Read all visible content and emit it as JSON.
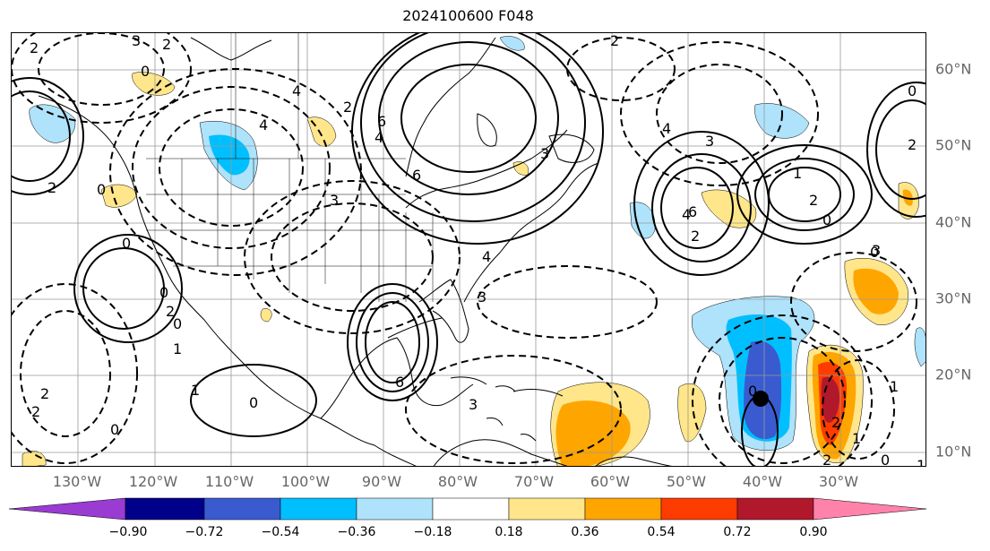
{
  "title": "2024100600 F048",
  "longitude_labels": [
    "130°W",
    "120°W",
    "110°W",
    "100°W",
    "90°W",
    "80°W",
    "70°W",
    "60°W",
    "50°W",
    "40°W",
    "30°W"
  ],
  "latitude_labels": [
    "60°N",
    "50°N",
    "40°N",
    "30°N",
    "20°N",
    "10°N"
  ],
  "colorbar": {
    "ticks": [
      "−0.90",
      "−0.72",
      "−0.54",
      "−0.36",
      "−0.18",
      "0.18",
      "0.36",
      "0.54",
      "0.72",
      "0.90"
    ],
    "colors": [
      "#9a3bd1",
      "#00008b",
      "#3a5bd0",
      "#00bfff",
      "#aee3fb",
      "#ffffff",
      "#ffe68a",
      "#ffa500",
      "#ff3c00",
      "#b2182b",
      "#ff82ab"
    ]
  },
  "contour_labels": [
    "3",
    "2",
    "2",
    "0",
    "4",
    "2",
    "0",
    "4",
    "6",
    "6",
    "4",
    "2",
    "3",
    "0",
    "0",
    "2",
    "0",
    "1",
    "2",
    "2",
    "1",
    "0",
    "0",
    "6",
    "3",
    "3",
    "4",
    "3",
    "2",
    "4",
    "6",
    "4",
    "2",
    "3",
    "0",
    "0",
    "1",
    "2",
    "0",
    "0",
    "1",
    "2",
    "2",
    "1",
    "0",
    "2",
    "1",
    "3"
  ],
  "storm_marker": {
    "label": "",
    "lon": -41.5,
    "lat": 17.0
  }
}
